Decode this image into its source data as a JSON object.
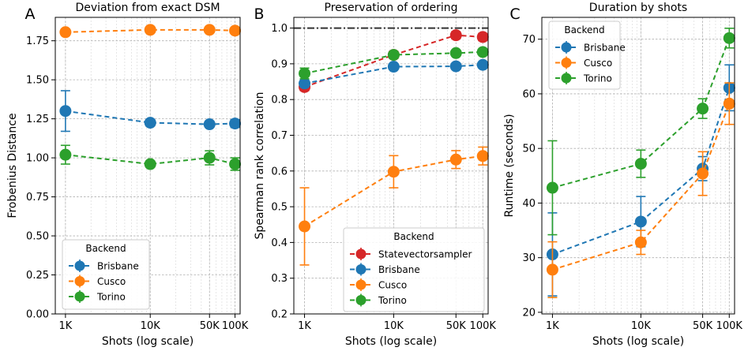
{
  "colors": {
    "Statevectorsampler": "#d62728",
    "Brisbane": "#1f77b4",
    "Cusco": "#ff7f0e",
    "Torino": "#2ca02c",
    "reference": "#333333"
  },
  "chart_data": [
    {
      "type": "line",
      "panel": "A",
      "title": "Deviation from exact DSM",
      "xlabel": "Shots (log scale)",
      "ylabel": "Frobenius Distance",
      "xscale": "log",
      "x": [
        1000,
        10000,
        50000,
        100000
      ],
      "xticks": [
        1000,
        10000,
        50000,
        100000
      ],
      "xtick_labels": [
        "1K",
        "10K",
        "50K",
        "100K"
      ],
      "ylim": [
        0,
        1.9
      ],
      "yticks": [
        0,
        0.25,
        0.5,
        0.75,
        1.0,
        1.25,
        1.5,
        1.75
      ],
      "ytick_labels": [
        "0.00",
        "0.25",
        "0.50",
        "0.75",
        "1.00",
        "1.25",
        "1.50",
        "1.75"
      ],
      "legend_title": "Backend",
      "legend_loc": "lower-left",
      "series": [
        {
          "name": "Brisbane",
          "values": [
            1.3,
            1.225,
            1.215,
            1.22
          ],
          "err": [
            0.13,
            0.02,
            0.02,
            0.025
          ]
        },
        {
          "name": "Cusco",
          "values": [
            1.805,
            1.82,
            1.82,
            1.815
          ],
          "err": [
            0.02,
            0.01,
            0.01,
            0.01
          ]
        },
        {
          "name": "Torino",
          "values": [
            1.02,
            0.96,
            1.0,
            0.96
          ],
          "err": [
            0.06,
            0.02,
            0.045,
            0.04
          ]
        }
      ]
    },
    {
      "type": "line",
      "panel": "B",
      "title": "Preservation of ordering",
      "xlabel": "Shots (log scale)",
      "ylabel": "Spearman rank correlation",
      "xscale": "log",
      "x": [
        1000,
        10000,
        50000,
        100000
      ],
      "xticks": [
        1000,
        10000,
        50000,
        100000
      ],
      "xtick_labels": [
        "1K",
        "10K",
        "50K",
        "100K"
      ],
      "ylim": [
        0.2,
        1.03
      ],
      "yticks": [
        0.2,
        0.3,
        0.4,
        0.5,
        0.6,
        0.7,
        0.8,
        0.9,
        1.0
      ],
      "ytick_labels": [
        "0.2",
        "0.3",
        "0.4",
        "0.5",
        "0.6",
        "0.7",
        "0.8",
        "0.9",
        "1.0"
      ],
      "reference_line": 1.0,
      "legend_title": "Backend",
      "legend_loc": "lower-right",
      "series": [
        {
          "name": "Statevectorsampler",
          "values": [
            0.835,
            0.925,
            0.98,
            0.975
          ],
          "err": [
            0.01,
            0.01,
            0.01,
            0.01
          ]
        },
        {
          "name": "Brisbane",
          "values": [
            0.845,
            0.892,
            0.893,
            0.897
          ],
          "err": [
            0.01,
            0.005,
            0.005,
            0.005
          ]
        },
        {
          "name": "Cusco",
          "values": [
            0.445,
            0.598,
            0.632,
            0.642
          ],
          "err": [
            0.108,
            0.045,
            0.025,
            0.025
          ]
        },
        {
          "name": "Torino",
          "values": [
            0.873,
            0.925,
            0.93,
            0.933
          ],
          "err": [
            0.015,
            0.005,
            0.005,
            0.005
          ]
        }
      ]
    },
    {
      "type": "line",
      "panel": "C",
      "title": "Duration by shots",
      "xlabel": "Shots (log scale)",
      "ylabel": "Runtime (seconds)",
      "xscale": "log",
      "x": [
        1000,
        10000,
        50000,
        100000
      ],
      "xticks": [
        1000,
        10000,
        50000,
        100000
      ],
      "xtick_labels": [
        "1K",
        "10K",
        "50K",
        "100K"
      ],
      "ylim": [
        19.7,
        74
      ],
      "yticks": [
        20,
        30,
        40,
        50,
        60,
        70
      ],
      "ytick_labels": [
        "20",
        "30",
        "40",
        "50",
        "60",
        "70"
      ],
      "legend_title": "Backend",
      "legend_loc": "upper-left",
      "series": [
        {
          "name": "Brisbane",
          "values": [
            30.6,
            36.6,
            46.3,
            61.1
          ],
          "err": [
            7.6,
            4.6,
            2.2,
            4.2
          ]
        },
        {
          "name": "Cusco",
          "values": [
            27.8,
            32.8,
            45.4,
            58.2
          ],
          "err": [
            5.1,
            2.2,
            4.0,
            3.8
          ]
        },
        {
          "name": "Torino",
          "values": [
            42.8,
            47.2,
            57.3,
            70.2
          ],
          "err": [
            8.6,
            2.5,
            1.8,
            1.8
          ]
        }
      ]
    }
  ]
}
